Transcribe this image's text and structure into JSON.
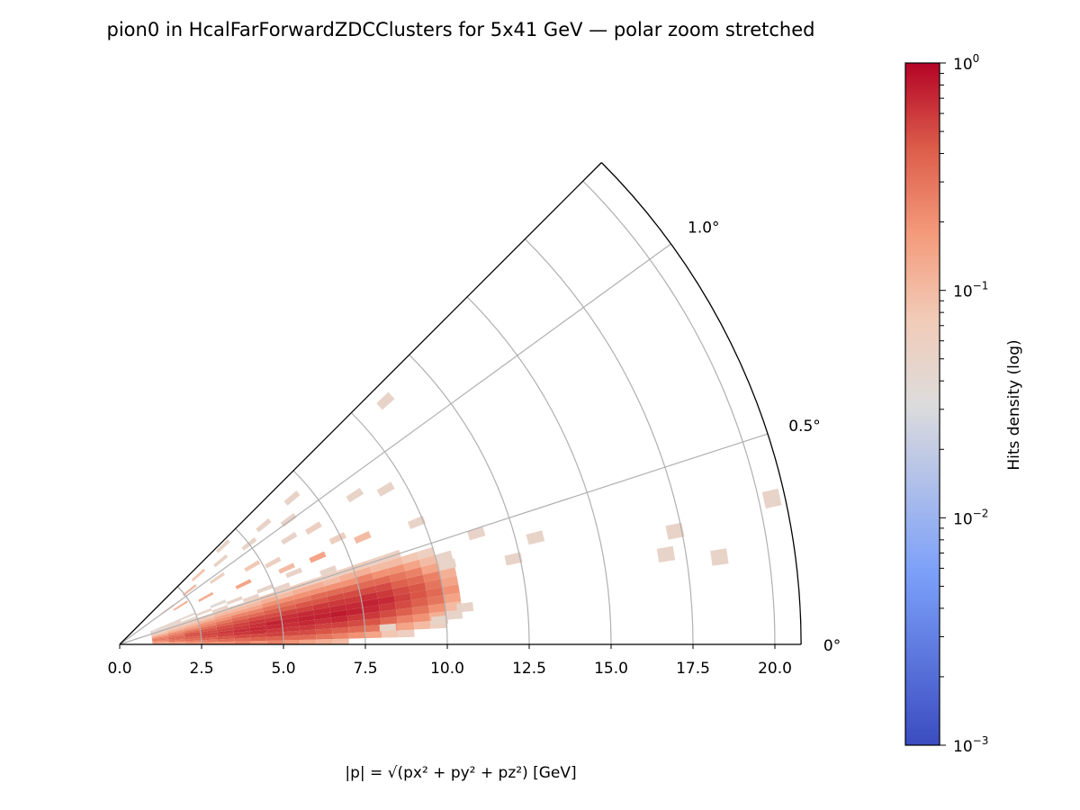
{
  "chart_data": {
    "type": "heatmap",
    "projection": "polar-wedge",
    "title": "pion0 in HcalFarForwardZDCClusters for 5x41 GeV — polar zoom stretched",
    "xlabel": "|p| = √(px² + py² + pz²) [GeV]",
    "r_range": [
      0,
      20.8
    ],
    "theta_range_deg": [
      0,
      1.25
    ],
    "r_ticks": [
      "0.0",
      "2.5",
      "5.0",
      "7.5",
      "10.0",
      "12.5",
      "15.0",
      "17.5",
      "20.0"
    ],
    "r_tick_values": [
      0,
      2.5,
      5,
      7.5,
      10,
      12.5,
      15,
      17.5,
      20
    ],
    "theta_ticks": [
      "0°",
      "0.5°",
      "1.0°"
    ],
    "theta_tick_values": [
      0,
      0.5,
      1.0
    ],
    "grid": true,
    "colorbar": {
      "label": "Hits density (log)",
      "colormap": "coolwarm",
      "scale": "log",
      "range": [
        0.001,
        1
      ],
      "tick_labels": [
        {
          "base": "10",
          "exp": "0"
        },
        {
          "base": "10",
          "exp": "−1"
        },
        {
          "base": "10",
          "exp": "−2"
        },
        {
          "base": "10",
          "exp": "−3"
        }
      ],
      "tick_values": [
        1,
        0.1,
        0.01,
        0.001
      ]
    },
    "bin_r_width": 0.5,
    "bin_theta_width_deg": 0.04,
    "core_r_centers": [
      1.25,
      1.75,
      2.25,
      2.75,
      3.25,
      3.75,
      4.25,
      4.75,
      5.25,
      5.75,
      6.25,
      6.75,
      7.25,
      7.75,
      8.25,
      8.75,
      9.25,
      9.75,
      10.25
    ],
    "core_theta_centers": [
      0.02,
      0.06,
      0.1,
      0.14,
      0.18,
      0.22,
      0.26,
      0.3,
      0.34,
      0.38,
      0.42,
      0.46,
      0.5,
      0.54,
      0.58,
      0.62
    ],
    "core_density": [
      [
        0.1,
        0.15,
        0.2,
        0.25,
        0.3,
        0.3,
        0.25,
        0.2,
        0.15,
        0.1,
        0.08,
        0.06,
        0.05,
        0.05,
        0.04,
        0.04
      ],
      [
        0.12,
        0.2,
        0.3,
        0.35,
        0.4,
        0.35,
        0.3,
        0.25,
        0.2,
        0.12,
        0.1,
        0.08,
        0.06,
        0.05,
        0.05,
        0.04
      ],
      [
        0.15,
        0.25,
        0.35,
        0.4,
        0.45,
        0.5,
        0.4,
        0.3,
        0.2,
        0.15,
        0.1,
        0.08,
        0.06,
        0.05,
        0,
        0.04
      ],
      [
        0.2,
        0.3,
        0.4,
        0.5,
        0.55,
        0.5,
        0.45,
        0.35,
        0.25,
        0.2,
        0.12,
        0.08,
        0.06,
        0,
        0.05,
        0
      ],
      [
        0.2,
        0.35,
        0.45,
        0.55,
        0.6,
        0.55,
        0.5,
        0.4,
        0.3,
        0.2,
        0.15,
        0.1,
        0.07,
        0.05,
        0,
        0.04
      ],
      [
        0.25,
        0.35,
        0.5,
        0.6,
        0.65,
        0.6,
        0.55,
        0.45,
        0.35,
        0.25,
        0.15,
        0.1,
        0.06,
        0,
        0.05,
        0
      ],
      [
        0.2,
        0.4,
        0.5,
        0.65,
        0.7,
        0.65,
        0.6,
        0.5,
        0.35,
        0.25,
        0.15,
        0.1,
        0.07,
        0.05,
        0,
        0
      ],
      [
        0.25,
        0.4,
        0.55,
        0.6,
        0.7,
        0.75,
        0.6,
        0.5,
        0.4,
        0.3,
        0.2,
        0.12,
        0.08,
        0,
        0.05,
        0
      ],
      [
        0.2,
        0.35,
        0.5,
        0.6,
        0.65,
        0.7,
        0.65,
        0.55,
        0.4,
        0.3,
        0.2,
        0.1,
        0.06,
        0.05,
        0,
        0
      ],
      [
        0.15,
        0.35,
        0.5,
        0.6,
        0.7,
        0.75,
        0.7,
        0.55,
        0.45,
        0.3,
        0.2,
        0.12,
        0.07,
        0,
        0,
        0.05
      ],
      [
        0.12,
        0.3,
        0.45,
        0.55,
        0.65,
        0.75,
        0.7,
        0.6,
        0.45,
        0.35,
        0.2,
        0.12,
        0.06,
        0,
        0,
        0
      ],
      [
        0.1,
        0.25,
        0.4,
        0.55,
        0.7,
        0.8,
        0.7,
        0.6,
        0.5,
        0.35,
        0.2,
        0.1,
        0.06,
        0.05,
        0,
        0
      ],
      [
        0,
        0.2,
        0.35,
        0.5,
        0.6,
        0.75,
        0.7,
        0.6,
        0.5,
        0.35,
        0.2,
        0.12,
        0.06,
        0,
        0,
        0
      ],
      [
        0,
        0.15,
        0.3,
        0.45,
        0.6,
        0.7,
        0.75,
        0.65,
        0.5,
        0.35,
        0.25,
        0.12,
        0.07,
        0,
        0,
        0
      ],
      [
        0,
        0.08,
        0.2,
        0.35,
        0.5,
        0.6,
        0.7,
        0.6,
        0.5,
        0.35,
        0.2,
        0.1,
        0.06,
        0,
        0,
        0
      ],
      [
        0,
        0.06,
        0.15,
        0.25,
        0.4,
        0.5,
        0.55,
        0.5,
        0.4,
        0.3,
        0.2,
        0.1,
        0.06,
        0,
        0,
        0
      ],
      [
        0,
        0,
        0.1,
        0.2,
        0.3,
        0.4,
        0.45,
        0.45,
        0.35,
        0.25,
        0.15,
        0.08,
        0,
        0,
        0,
        0
      ],
      [
        0,
        0,
        0.06,
        0.12,
        0.2,
        0.3,
        0.35,
        0.3,
        0.25,
        0.15,
        0.1,
        0.06,
        0,
        0,
        0,
        0
      ],
      [
        0,
        0,
        0,
        0.05,
        0.1,
        0.15,
        0.2,
        0.15,
        0.12,
        0.08,
        0.05,
        0,
        0,
        0,
        0,
        0
      ]
    ],
    "sparse_bins": [
      [
        11.0,
        1.18,
        0.05
      ],
      [
        20.4,
        0.35,
        0.05
      ],
      [
        18.5,
        0.23,
        0.05
      ],
      [
        16.9,
        0.26,
        0.05
      ],
      [
        17.3,
        0.32,
        0.05
      ],
      [
        13.1,
        0.4,
        0.05
      ],
      [
        12.3,
        0.34,
        0.05
      ],
      [
        11.4,
        0.48,
        0.05
      ],
      [
        10.3,
        0.38,
        0.05
      ],
      [
        10.6,
        0.17,
        0.05
      ],
      [
        9.8,
        0.12,
        0.05
      ],
      [
        8.2,
        0.1,
        0.05
      ],
      [
        6.9,
        1.12,
        0.05
      ],
      [
        8.5,
        0.9,
        0.05
      ],
      [
        9.4,
        0.84,
        0.05
      ],
      [
        9.8,
        0.62,
        0.05
      ],
      [
        6.4,
        1.01,
        0.05
      ],
      [
        6.9,
        0.86,
        0.06
      ],
      [
        5.7,
        1.1,
        0.05
      ],
      [
        5.0,
        1.05,
        0.05
      ],
      [
        4.35,
        1.21,
        0.05
      ],
      [
        4.0,
        1.1,
        0.05
      ],
      [
        6.1,
        0.89,
        0.05
      ],
      [
        3.2,
        1.15,
        0.08
      ],
      [
        3.6,
        0.95,
        0.06
      ],
      [
        2.7,
        1.05,
        0.1
      ],
      [
        4.7,
        0.85,
        0.08
      ],
      [
        5.3,
        0.78,
        0.06
      ],
      [
        7.4,
        0.72,
        0.06
      ],
      [
        8.1,
        0.66,
        0.1
      ],
      [
        2.2,
        0.9,
        0.12
      ],
      [
        1.8,
        1.0,
        0.1
      ],
      [
        3.0,
        0.8,
        0.12
      ],
      [
        4.2,
        0.72,
        0.15
      ],
      [
        5.6,
        0.68,
        0.1
      ],
      [
        6.6,
        0.66,
        0.15
      ]
    ]
  }
}
